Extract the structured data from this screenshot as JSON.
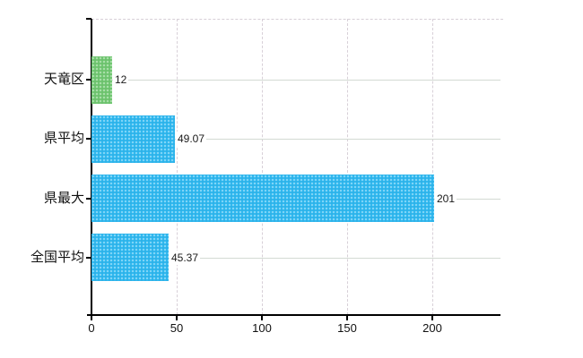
{
  "chart_data": {
    "type": "bar",
    "orientation": "horizontal",
    "categories": [
      "天竜区",
      "県平均",
      "県最大",
      "全国平均"
    ],
    "values": [
      12,
      49.07,
      201,
      45.37
    ],
    "value_labels": [
      "12",
      "49.07",
      "201",
      "45.37"
    ],
    "bar_colors": [
      "#72c873",
      "#31b9f0",
      "#31b9f0",
      "#31b9f0"
    ],
    "x_ticks": [
      0,
      50,
      100,
      150,
      200
    ],
    "x_tick_labels": [
      "0",
      "50",
      "100",
      "150",
      "200"
    ],
    "xlim": [
      0,
      240
    ],
    "title": "",
    "xlabel": "",
    "ylabel": "",
    "grid": {
      "vertical_lines": "dashed",
      "horizontal_lines": "solid",
      "plot_top_border": "dashed"
    }
  },
  "colors": {
    "background": "#ffffff",
    "axis": "#000000",
    "grid_horizontal": "#d3dad3",
    "grid_vertical": "#d8d0d8",
    "text": "#1a1a1a",
    "bar_green": "#72c873",
    "bar_blue": "#31b9f0"
  }
}
